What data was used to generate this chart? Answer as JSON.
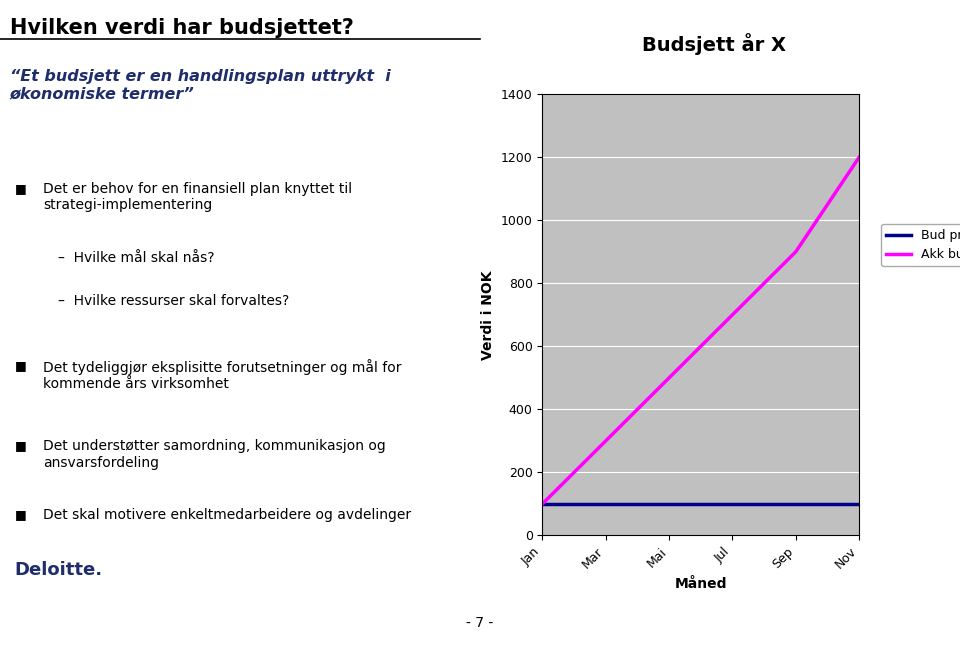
{
  "title": "Hvilken verdi har budsjettet?",
  "slide_bg": "#ffffff",
  "left_panel_bg": "#ffffff",
  "right_panel_bg": "#6b8cc7",
  "header_color": "#000000",
  "quote_text": "“Et budsjett er en handlingsplan uttrykt  i \nøkonomiske termer”",
  "quote_color": "#1f2d6b",
  "bullet_points": [
    "Det er behov for en finansiell plan knyttet til\nstrategi­implementering",
    "Det tydeliggjør eksplisitte forutsetninger og mål for\nkommende års virksomhet",
    "Det understøtter samordning, kommunikasjon og\nansvarsfordeling",
    "Det skal motivere enkeltmedarbeidere og avdelinger"
  ],
  "sub_bullets": [
    "Hvilke mål skal nås?",
    "Hvilke ressurser skal forvaltes?"
  ],
  "deloitte_color": "#1f2d6b",
  "page_number": "- 7 -",
  "chart_title": "Budsjett år X",
  "chart_bg": "#c0c0c0",
  "chart_outer_bg": "#ffffff",
  "x_labels": [
    "Jan",
    "Mar",
    "Mai",
    "Jul",
    "Sep",
    "Nov"
  ],
  "x_values": [
    1,
    2,
    3,
    4,
    5,
    6
  ],
  "bud_pr_mnd_values": [
    100,
    100,
    100,
    100,
    100,
    100
  ],
  "akk_bud_values": [
    100,
    300,
    500,
    700,
    900,
    1200
  ],
  "ylim": [
    0,
    1400
  ],
  "yticks": [
    0,
    200,
    400,
    600,
    800,
    1000,
    1200,
    1400
  ],
  "ylabel": "Verdi i NOK",
  "xlabel": "Måned",
  "line1_color": "#00008b",
  "line2_color": "#ff00ff",
  "legend1": "Bud pr mnd",
  "legend2": "Akk bud."
}
